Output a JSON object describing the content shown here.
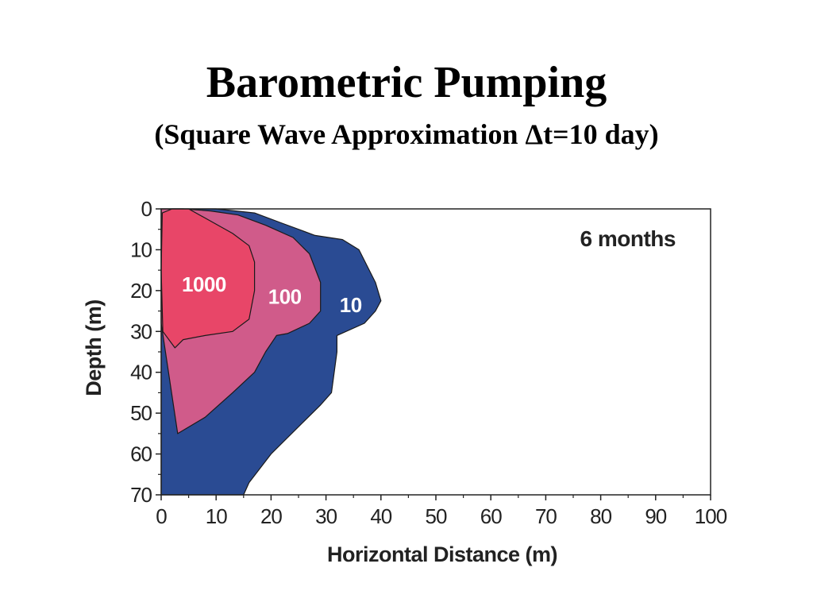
{
  "slide": {
    "title": "Barometric Pumping",
    "subtitle": "(Square Wave Approximation Δt=10 day)"
  },
  "chart_data": {
    "type": "contour",
    "xlabel": "Horizontal Distance (m)",
    "ylabel": "Depth (m)",
    "xlim": [
      0,
      100
    ],
    "ylim": [
      0,
      70
    ],
    "y_inverted": true,
    "x_ticks": [
      0,
      10,
      20,
      30,
      40,
      50,
      60,
      70,
      80,
      90,
      100
    ],
    "y_ticks": [
      0,
      10,
      20,
      30,
      40,
      50,
      60,
      70
    ],
    "annotation": "6 months",
    "annotation_position": "top-right",
    "grid": false,
    "contours": [
      {
        "name": "10",
        "label_at": [
          34.5,
          23.5
        ],
        "color": "#2a4b93",
        "points": [
          [
            0,
            70
          ],
          [
            0,
            0
          ],
          [
            10,
            0
          ],
          [
            17,
            1
          ],
          [
            22,
            3.5
          ],
          [
            28,
            6.5
          ],
          [
            33,
            7.5
          ],
          [
            36,
            10
          ],
          [
            39,
            18
          ],
          [
            40,
            22.5
          ],
          [
            39,
            25
          ],
          [
            37,
            28
          ],
          [
            32,
            31
          ],
          [
            32,
            35
          ],
          [
            31,
            45
          ],
          [
            29,
            48
          ],
          [
            26,
            52
          ],
          [
            20,
            60
          ],
          [
            16,
            67
          ],
          [
            15,
            70
          ]
        ]
      },
      {
        "name": "100",
        "label_at": [
          22.5,
          21.5
        ],
        "color": "#d05b8a",
        "points": [
          [
            0,
            28
          ],
          [
            0,
            0
          ],
          [
            4,
            0
          ],
          [
            9,
            0.5
          ],
          [
            14,
            1.5
          ],
          [
            19,
            4
          ],
          [
            24,
            7
          ],
          [
            27,
            11
          ],
          [
            29,
            18
          ],
          [
            29,
            25
          ],
          [
            27,
            28
          ],
          [
            23,
            30.5
          ],
          [
            21,
            31
          ],
          [
            19,
            35
          ],
          [
            17,
            40
          ],
          [
            13,
            45
          ],
          [
            8,
            51
          ],
          [
            3,
            55
          ]
        ]
      },
      {
        "name": "1000",
        "label_at": [
          7.8,
          18.5
        ],
        "color": "#e84668",
        "points": [
          [
            0.3,
            30
          ],
          [
            0,
            15
          ],
          [
            0.2,
            1
          ],
          [
            2,
            0
          ],
          [
            5,
            0
          ],
          [
            9,
            3
          ],
          [
            13,
            6
          ],
          [
            16,
            9
          ],
          [
            17,
            13
          ],
          [
            17,
            20
          ],
          [
            16,
            27
          ],
          [
            13,
            30
          ],
          [
            8,
            31
          ],
          [
            4,
            32
          ],
          [
            2.5,
            34
          ]
        ]
      }
    ]
  }
}
